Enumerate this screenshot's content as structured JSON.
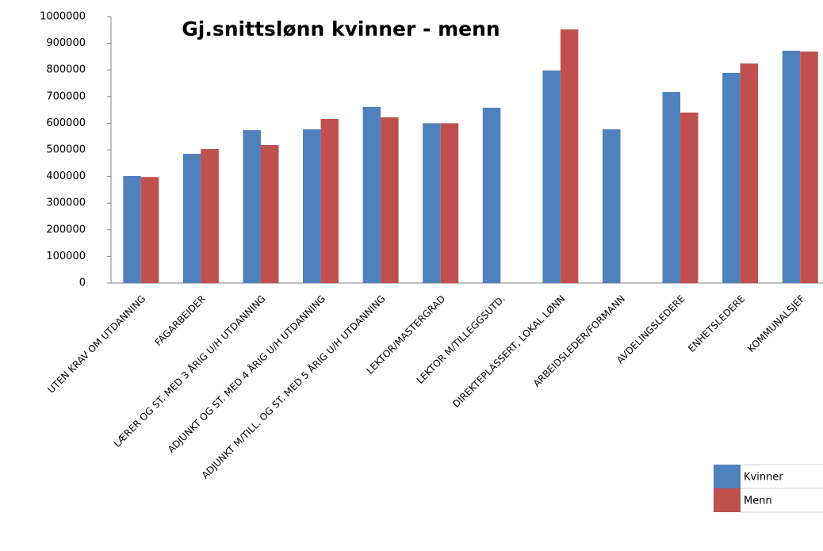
{
  "chart_data": {
    "type": "bar",
    "title": "Gj.snittslønn kvinner - menn",
    "categories": [
      "UTEN KRAV OM UTDANNING",
      "FAGARBEIDER",
      "LÆRER OG ST. MED 3 ÅRIG U/H UTDANNING",
      "ADJUNKT OG ST. MED 4 ÅRIG U/H UTDANNING",
      "ADJUNKT M/TILL. OG ST. MED 5 ÅRIG U/H UTDANNING",
      "LEKTOR/MASTERGRAD",
      "LEKTOR M/TILLEGGSUTD.",
      "DIREKTEPLASSERT, LOKAL LØNN",
      "ARBEIDSLEDER/FORMANN",
      "AVDELINGSLEDERE",
      "ENHETSLEDERE",
      "KOMMUNALSJEF"
    ],
    "series": [
      {
        "name": "Kvinner",
        "color": "#4f81bd",
        "values": [
          402000,
          485000,
          574000,
          577000,
          661000,
          600000,
          658000,
          798000,
          577000,
          717000,
          789000,
          872000
        ]
      },
      {
        "name": "Menn",
        "color": "#c0504d",
        "values": [
          398000,
          503000,
          518000,
          616000,
          622000,
          600000,
          null,
          952000,
          null,
          640000,
          824000,
          869000
        ]
      }
    ],
    "ylim": [
      0,
      1000000
    ],
    "yticks": [
      0,
      100000,
      200000,
      300000,
      400000,
      500000,
      600000,
      700000,
      800000,
      900000,
      1000000
    ],
    "grid": false,
    "legend": "bottom-right"
  }
}
